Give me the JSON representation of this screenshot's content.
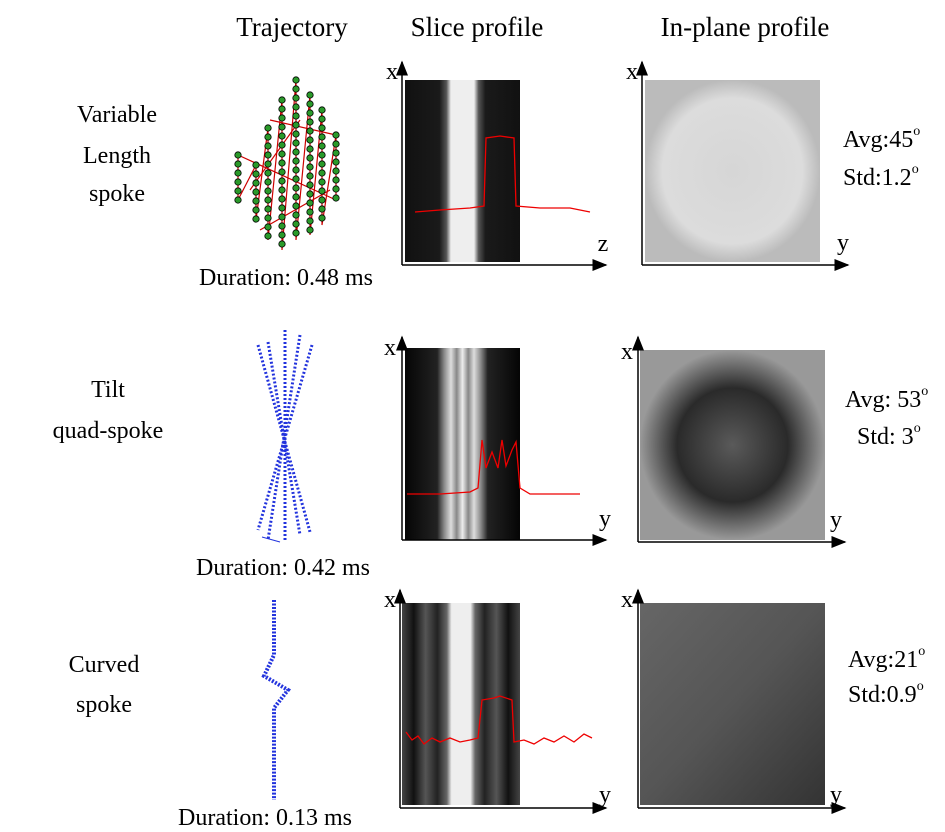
{
  "header": {
    "columns": [
      "Trajectory",
      "Slice profile",
      "In-plane profile"
    ]
  },
  "rows": [
    {
      "label": [
        "Variable",
        "Length",
        "spoke"
      ],
      "duration": "Duration: 0.48 ms",
      "slice_axes": {
        "vertical": "x",
        "horizontal": "z"
      },
      "inplane_axes": {
        "vertical": "x",
        "horizontal": "y"
      },
      "avg": {
        "text": "Avg:45",
        "sup": "o"
      },
      "std": {
        "text": "Std:1.2",
        "sup": "o"
      }
    },
    {
      "label": [
        "Tilt",
        "quad-spoke"
      ],
      "duration": "Duration: 0.42 ms",
      "slice_axes": {
        "vertical": "x",
        "horizontal": "y"
      },
      "inplane_axes": {
        "vertical": "x",
        "horizontal": "y"
      },
      "avg": {
        "text": "Avg: 53",
        "sup": "o"
      },
      "std": {
        "text": "Std: 3",
        "sup": "o"
      }
    },
    {
      "label": [
        "Curved",
        "spoke"
      ],
      "duration": "Duration: 0.13 ms",
      "slice_axes": {
        "vertical": "x",
        "horizontal": "y"
      },
      "inplane_axes": {
        "vertical": "x",
        "horizontal": "y"
      },
      "avg": {
        "text": "Avg:21",
        "sup": "o"
      },
      "std": {
        "text": "Std:0.9",
        "sup": "o"
      }
    }
  ]
}
